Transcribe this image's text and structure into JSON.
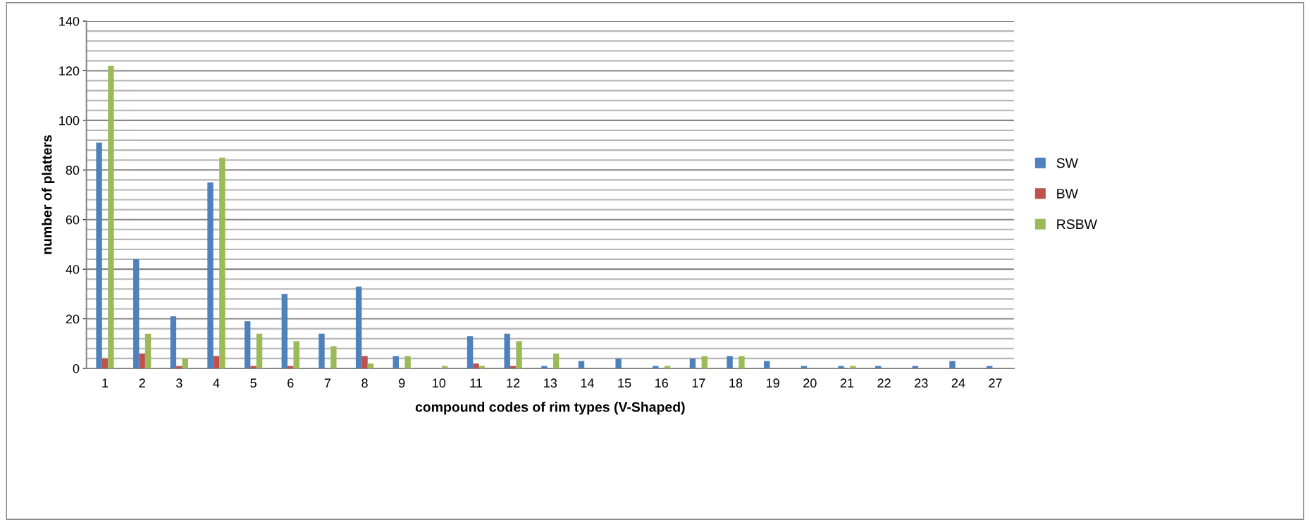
{
  "chart_data": {
    "type": "bar",
    "xlabel": "compound codes of rim types (V-Shaped)",
    "ylabel": "number of platters",
    "categories": [
      "1",
      "2",
      "3",
      "4",
      "5",
      "6",
      "7",
      "8",
      "9",
      "10",
      "11",
      "12",
      "13",
      "14",
      "15",
      "16",
      "17",
      "18",
      "19",
      "20",
      "21",
      "22",
      "23",
      "24",
      "27"
    ],
    "series": [
      {
        "name": "SW",
        "color": "#4f81bd",
        "values": [
          91,
          44,
          21,
          75,
          19,
          30,
          14,
          33,
          5,
          0,
          13,
          14,
          1,
          3,
          4,
          1,
          4,
          5,
          3,
          1,
          1,
          1,
          1,
          3,
          1
        ]
      },
      {
        "name": "BW",
        "color": "#c0504d",
        "values": [
          4,
          6,
          1,
          5,
          1,
          1,
          0,
          5,
          0,
          0,
          2,
          1,
          0,
          0,
          0,
          0,
          0,
          0,
          0,
          0,
          0,
          0,
          0,
          0,
          0
        ]
      },
      {
        "name": "RSBW",
        "color": "#9bbb59",
        "values": [
          122,
          14,
          4,
          85,
          14,
          11,
          9,
          2,
          5,
          1,
          1,
          11,
          6,
          0,
          0,
          1,
          5,
          5,
          0,
          0,
          1,
          0,
          0,
          0,
          0
        ]
      }
    ],
    "ylim": [
      0,
      140
    ],
    "yticks": [
      0,
      {
        "value": 4,
        "label": null
      },
      {
        "value": 8,
        "label": null
      },
      {
        "value": 12,
        "label": null
      },
      {
        "value": 16,
        "label": null
      },
      20,
      {
        "value": 24,
        "label": null
      },
      {
        "value": 28,
        "label": null
      },
      {
        "value": 32,
        "label": null
      },
      {
        "value": 36,
        "label": null
      },
      40,
      {
        "value": 44,
        "label": null
      },
      {
        "value": 48,
        "label": null
      },
      {
        "value": 52,
        "label": null
      },
      {
        "value": 56,
        "label": null
      },
      60,
      {
        "value": 64,
        "label": null
      },
      {
        "value": 68,
        "label": null
      },
      {
        "value": 72,
        "label": null
      },
      {
        "value": 76,
        "label": null
      },
      80,
      {
        "value": 84,
        "label": null
      },
      {
        "value": 88,
        "label": null
      },
      {
        "value": 92,
        "label": null
      },
      {
        "value": 96,
        "label": null
      },
      100,
      {
        "value": 104,
        "label": null
      },
      {
        "value": 108,
        "label": null
      },
      {
        "value": 112,
        "label": null
      },
      {
        "value": 116,
        "label": null
      },
      120,
      {
        "value": 124,
        "label": null
      },
      {
        "value": 128,
        "label": null
      },
      {
        "value": 132,
        "label": null
      },
      {
        "value": 136,
        "label": null
      },
      140
    ],
    "grid": "y",
    "legend": "right"
  }
}
